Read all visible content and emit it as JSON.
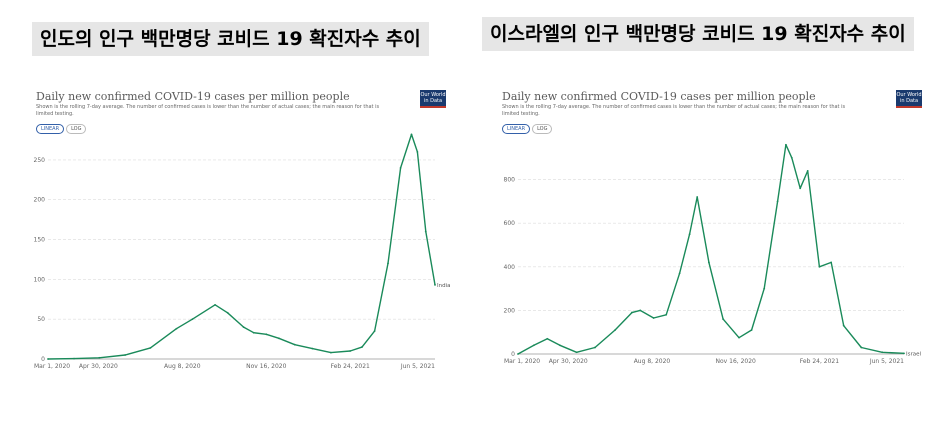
{
  "captions": {
    "left": "인도의 인구 백만명당 코비드 19 확진자수 추이",
    "right": "이스라엘의 인구 백만명당 코비드 19 확진자수 추이"
  },
  "common": {
    "title": "Daily new confirmed COVID-19 cases per million people",
    "subtitle": "Shown is the rolling 7-day average. The number of confirmed cases is lower than the number of actual cases; the main reason for that is limited testing.",
    "btn_linear": "LINEAR",
    "btn_log": "LOG",
    "logo": "Our World in Data",
    "line_color": "#1a8a5a"
  },
  "chart_data": [
    {
      "type": "line",
      "title": "Daily new confirmed COVID-19 cases per million people",
      "xlabel": "",
      "ylabel": "",
      "ylim": [
        0,
        280
      ],
      "yticks": [
        0,
        50,
        100,
        150,
        200,
        250
      ],
      "xticks": [
        "Mar 1, 2020",
        "Apr 30, 2020",
        "Aug 8, 2020",
        "Nov 16, 2020",
        "Feb 24, 2021",
        "Jun 5, 2021"
      ],
      "grid": true,
      "series": [
        {
          "name": "India",
          "x": [
            "2020-03-01",
            "2020-04-01",
            "2020-05-01",
            "2020-06-01",
            "2020-07-01",
            "2020-08-01",
            "2020-08-20",
            "2020-09-16",
            "2020-10-01",
            "2020-10-20",
            "2020-11-01",
            "2020-11-16",
            "2020-12-01",
            "2020-12-20",
            "2021-01-10",
            "2021-02-01",
            "2021-02-24",
            "2021-03-10",
            "2021-03-25",
            "2021-04-10",
            "2021-04-25",
            "2021-05-08",
            "2021-05-15",
            "2021-05-25",
            "2021-06-05"
          ],
          "values": [
            0,
            0.5,
            1.5,
            5,
            14,
            38,
            50,
            68,
            58,
            40,
            33,
            31,
            26,
            18,
            13,
            8,
            10,
            15,
            35,
            120,
            240,
            282,
            260,
            160,
            93
          ]
        }
      ]
    },
    {
      "type": "line",
      "title": "Daily new confirmed COVID-19 cases per million people",
      "xlabel": "",
      "ylabel": "",
      "ylim": [
        0,
        1000
      ],
      "yticks": [
        0,
        200,
        400,
        600,
        800
      ],
      "xticks": [
        "Mar 1, 2020",
        "Apr 30, 2020",
        "Aug 8, 2020",
        "Nov 16, 2020",
        "Feb 24, 2021",
        "Jun 5, 2021"
      ],
      "grid": true,
      "series": [
        {
          "name": "Israel",
          "x": [
            "2020-03-01",
            "2020-03-20",
            "2020-04-05",
            "2020-04-20",
            "2020-05-10",
            "2020-06-01",
            "2020-06-25",
            "2020-07-15",
            "2020-07-25",
            "2020-08-10",
            "2020-08-25",
            "2020-09-10",
            "2020-09-22",
            "2020-10-01",
            "2020-10-15",
            "2020-11-01",
            "2020-11-20",
            "2020-12-05",
            "2020-12-20",
            "2021-01-05",
            "2021-01-15",
            "2021-01-22",
            "2021-02-01",
            "2021-02-10",
            "2021-02-24",
            "2021-03-10",
            "2021-03-25",
            "2021-04-15",
            "2021-05-10",
            "2021-06-05"
          ],
          "values": [
            0,
            40,
            70,
            40,
            8,
            30,
            110,
            190,
            200,
            165,
            180,
            370,
            550,
            720,
            420,
            160,
            75,
            110,
            300,
            700,
            960,
            900,
            760,
            840,
            400,
            420,
            130,
            30,
            8,
            3
          ]
        }
      ]
    }
  ]
}
